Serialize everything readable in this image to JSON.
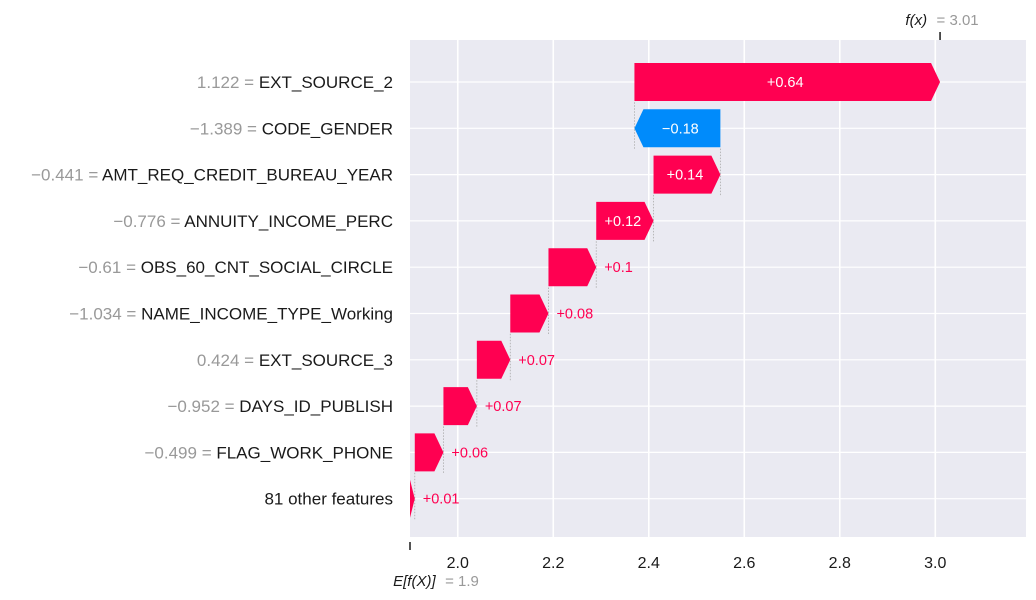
{
  "chart_data": {
    "type": "waterfall",
    "base_value_label": "E[f(X)]",
    "base_value_text": "= 1.9",
    "base_value": 1.9,
    "output_label": "f(x)",
    "output_value_text": "= 3.01",
    "output_value": 3.01,
    "xlim": [
      1.9,
      3.19
    ],
    "x_ticks": [
      2.0,
      2.2,
      2.4,
      2.6,
      2.8,
      3.0
    ],
    "x_tick_labels": [
      "2.0",
      "2.2",
      "2.4",
      "2.6",
      "2.8",
      "3.0"
    ],
    "colors": {
      "positive": "#ff0051",
      "negative": "#008bfb",
      "plot_bg": "#eaeaf2",
      "grid": "#ffffff"
    },
    "features": [
      {
        "value": "1.122",
        "name": "EXT_SOURCE_2",
        "contribution": 0.64,
        "label": "+0.64"
      },
      {
        "value": "−1.389",
        "name": "CODE_GENDER",
        "contribution": -0.18,
        "label": "−0.18"
      },
      {
        "value": "−0.441",
        "name": "AMT_REQ_CREDIT_BUREAU_YEAR",
        "contribution": 0.14,
        "label": "+0.14"
      },
      {
        "value": "−0.776",
        "name": "ANNUITY_INCOME_PERC",
        "contribution": 0.12,
        "label": "+0.12"
      },
      {
        "value": "−0.61",
        "name": "OBS_60_CNT_SOCIAL_CIRCLE",
        "contribution": 0.1,
        "label": "+0.1"
      },
      {
        "value": "−1.034",
        "name": "NAME_INCOME_TYPE_Working",
        "contribution": 0.08,
        "label": "+0.08"
      },
      {
        "value": "0.424",
        "name": "EXT_SOURCE_3",
        "contribution": 0.07,
        "label": "+0.07"
      },
      {
        "value": "−0.952",
        "name": "DAYS_ID_PUBLISH",
        "contribution": 0.07,
        "label": "+0.07"
      },
      {
        "value": "−0.499",
        "name": "FLAG_WORK_PHONE",
        "contribution": 0.06,
        "label": "+0.06"
      },
      {
        "value": "",
        "name": "81 other features",
        "contribution": 0.01,
        "label": "+0.01"
      }
    ]
  }
}
